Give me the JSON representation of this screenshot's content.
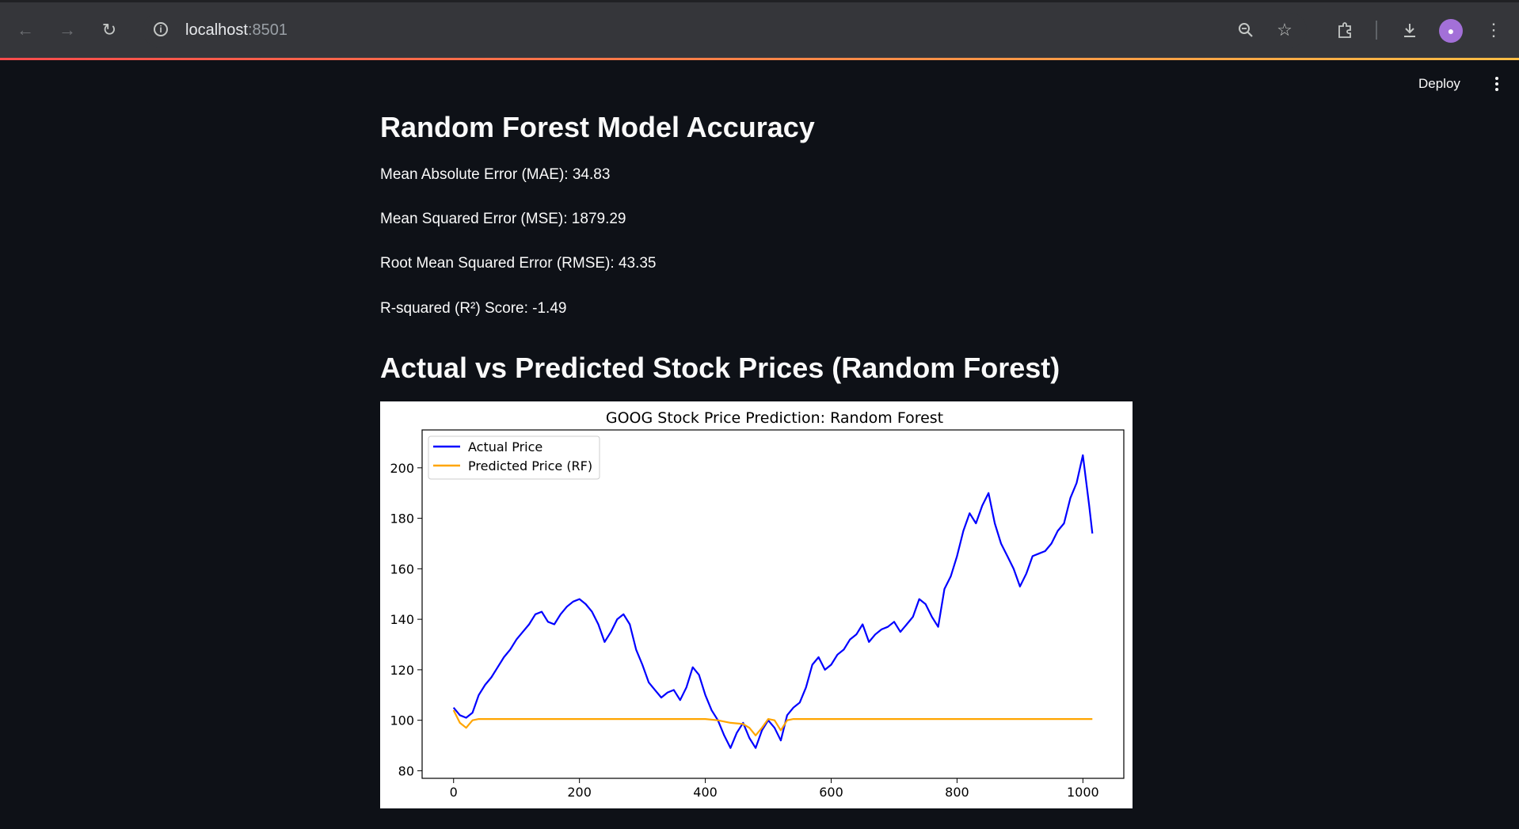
{
  "browser": {
    "url_host": "localhost",
    "url_port": ":8501",
    "icons": [
      "back-arrow-icon",
      "forward-arrow-icon",
      "reload-icon",
      "info-icon",
      "zoom-icon",
      "star-icon",
      "extensions-icon",
      "download-icon",
      "avatar",
      "chrome-menu-icon"
    ]
  },
  "app": {
    "deploy_label": "Deploy",
    "accent_colors": [
      "#ff4b4b",
      "#ffbd45"
    ]
  },
  "main": {
    "title": "Random Forest Model Accuracy",
    "metrics": [
      "Mean Absolute Error (MAE): 34.83",
      "Mean Squared Error (MSE): 1879.29",
      "Root Mean Squared Error (RMSE): 43.35",
      "R-squared (R²) Score: -1.49"
    ],
    "chart_heading": "Actual vs Predicted Stock Prices (Random Forest)"
  },
  "chart_data": {
    "type": "line",
    "title": "GOOG Stock Price Prediction: Random Forest",
    "xlabel": "",
    "ylabel": "",
    "xlim": [
      -50,
      1065
    ],
    "ylim": [
      77,
      215
    ],
    "xticks": [
      0,
      200,
      400,
      600,
      800,
      1000
    ],
    "yticks": [
      80,
      100,
      120,
      140,
      160,
      180,
      200
    ],
    "grid": false,
    "legend": "top-left",
    "series": [
      {
        "name": "Actual Price",
        "color": "#0000ff",
        "points": [
          [
            0,
            105
          ],
          [
            10,
            102
          ],
          [
            20,
            101
          ],
          [
            30,
            103
          ],
          [
            40,
            110
          ],
          [
            50,
            114
          ],
          [
            60,
            117
          ],
          [
            70,
            121
          ],
          [
            80,
            125
          ],
          [
            90,
            128
          ],
          [
            100,
            132
          ],
          [
            110,
            135
          ],
          [
            120,
            138
          ],
          [
            130,
            142
          ],
          [
            140,
            143
          ],
          [
            150,
            139
          ],
          [
            160,
            138
          ],
          [
            170,
            142
          ],
          [
            180,
            145
          ],
          [
            190,
            147
          ],
          [
            200,
            148
          ],
          [
            210,
            146
          ],
          [
            220,
            143
          ],
          [
            230,
            138
          ],
          [
            240,
            131
          ],
          [
            250,
            135
          ],
          [
            260,
            140
          ],
          [
            270,
            142
          ],
          [
            280,
            138
          ],
          [
            290,
            128
          ],
          [
            300,
            122
          ],
          [
            310,
            115
          ],
          [
            320,
            112
          ],
          [
            330,
            109
          ],
          [
            340,
            111
          ],
          [
            350,
            112
          ],
          [
            360,
            108
          ],
          [
            370,
            113
          ],
          [
            380,
            121
          ],
          [
            390,
            118
          ],
          [
            400,
            110
          ],
          [
            410,
            104
          ],
          [
            420,
            100
          ],
          [
            430,
            94
          ],
          [
            440,
            89
          ],
          [
            450,
            95
          ],
          [
            460,
            99
          ],
          [
            470,
            93
          ],
          [
            480,
            89
          ],
          [
            490,
            96
          ],
          [
            500,
            100
          ],
          [
            510,
            97
          ],
          [
            520,
            92
          ],
          [
            530,
            102
          ],
          [
            540,
            105
          ],
          [
            550,
            107
          ],
          [
            560,
            113
          ],
          [
            570,
            122
          ],
          [
            580,
            125
          ],
          [
            590,
            120
          ],
          [
            600,
            122
          ],
          [
            610,
            126
          ],
          [
            620,
            128
          ],
          [
            630,
            132
          ],
          [
            640,
            134
          ],
          [
            650,
            138
          ],
          [
            660,
            131
          ],
          [
            670,
            134
          ],
          [
            680,
            136
          ],
          [
            690,
            137
          ],
          [
            700,
            139
          ],
          [
            710,
            135
          ],
          [
            720,
            138
          ],
          [
            730,
            141
          ],
          [
            740,
            148
          ],
          [
            750,
            146
          ],
          [
            760,
            141
          ],
          [
            770,
            137
          ],
          [
            780,
            152
          ],
          [
            790,
            157
          ],
          [
            800,
            165
          ],
          [
            810,
            175
          ],
          [
            820,
            182
          ],
          [
            830,
            178
          ],
          [
            840,
            185
          ],
          [
            850,
            190
          ],
          [
            860,
            178
          ],
          [
            870,
            170
          ],
          [
            880,
            165
          ],
          [
            890,
            160
          ],
          [
            900,
            153
          ],
          [
            910,
            158
          ],
          [
            920,
            165
          ],
          [
            930,
            166
          ],
          [
            940,
            167
          ],
          [
            950,
            170
          ],
          [
            960,
            175
          ],
          [
            970,
            178
          ],
          [
            980,
            188
          ],
          [
            990,
            194
          ],
          [
            1000,
            205
          ],
          [
            1010,
            185
          ],
          [
            1015,
            174
          ]
        ]
      },
      {
        "name": "Predicted Price (RF)",
        "color": "#ffa500",
        "points": [
          [
            0,
            104
          ],
          [
            10,
            99
          ],
          [
            20,
            97
          ],
          [
            30,
            100
          ],
          [
            40,
            100.5
          ],
          [
            100,
            100.5
          ],
          [
            200,
            100.5
          ],
          [
            300,
            100.5
          ],
          [
            400,
            100.5
          ],
          [
            420,
            100
          ],
          [
            440,
            99
          ],
          [
            460,
            98.5
          ],
          [
            470,
            97
          ],
          [
            480,
            94
          ],
          [
            490,
            97
          ],
          [
            500,
            100.5
          ],
          [
            510,
            100
          ],
          [
            520,
            96
          ],
          [
            530,
            100
          ],
          [
            540,
            100.5
          ],
          [
            600,
            100.5
          ],
          [
            700,
            100.5
          ],
          [
            800,
            100.5
          ],
          [
            900,
            100.5
          ],
          [
            1000,
            100.5
          ],
          [
            1015,
            100.5
          ]
        ]
      }
    ]
  }
}
